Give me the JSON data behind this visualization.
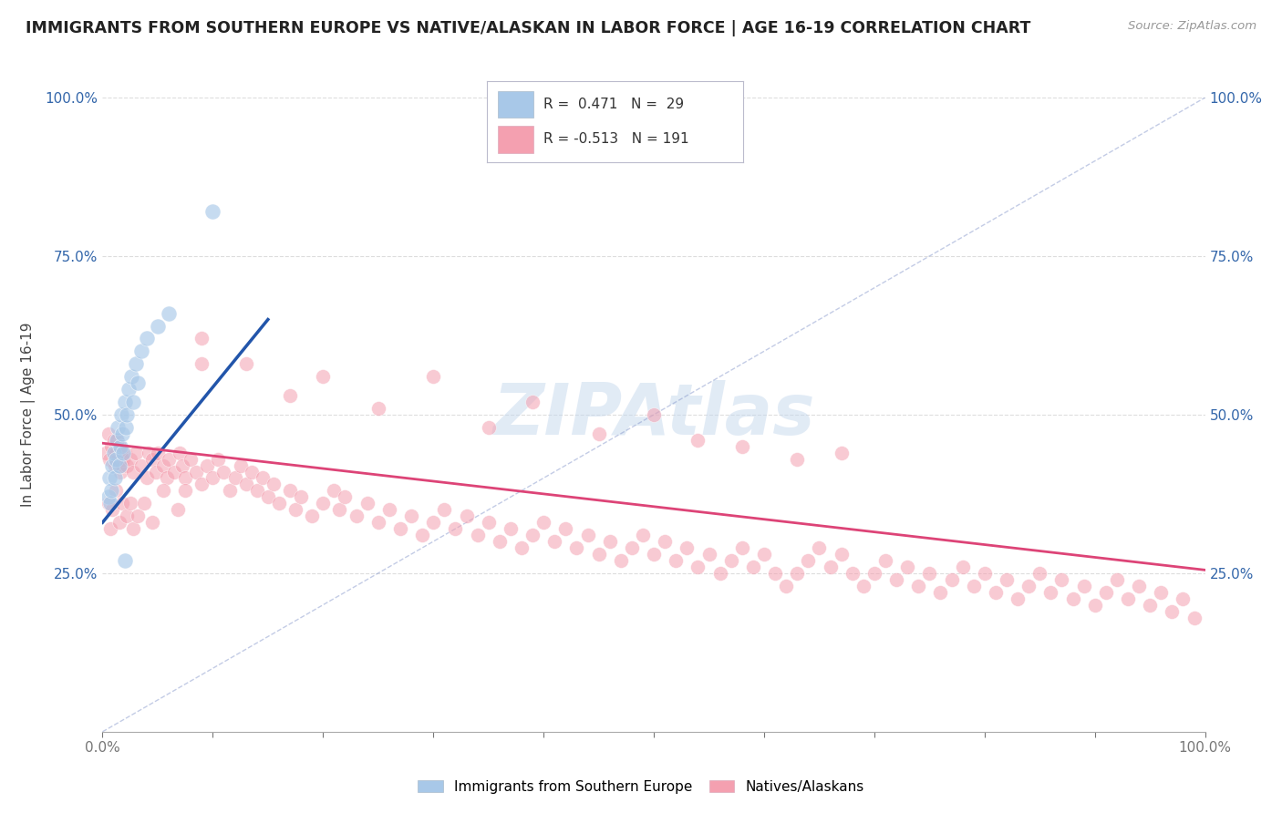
{
  "title": "IMMIGRANTS FROM SOUTHERN EUROPE VS NATIVE/ALASKAN IN LABOR FORCE | AGE 16-19 CORRELATION CHART",
  "source": "Source: ZipAtlas.com",
  "ylabel": "In Labor Force | Age 16-19",
  "blue_color": "#a8c8e8",
  "pink_color": "#f4a0b0",
  "blue_line_color": "#2255aa",
  "pink_line_color": "#dd4477",
  "legend_blue_color": "#a8c8e8",
  "legend_pink_color": "#f4a0b0",
  "background_color": "#ffffff",
  "grid_color": "#dddddd",
  "watermark_color": "#c5d8ed",
  "blue_scatter": [
    [
      0.005,
      0.37
    ],
    [
      0.006,
      0.4
    ],
    [
      0.007,
      0.36
    ],
    [
      0.008,
      0.38
    ],
    [
      0.009,
      0.42
    ],
    [
      0.01,
      0.44
    ],
    [
      0.011,
      0.4
    ],
    [
      0.012,
      0.43
    ],
    [
      0.013,
      0.46
    ],
    [
      0.014,
      0.48
    ],
    [
      0.015,
      0.42
    ],
    [
      0.016,
      0.45
    ],
    [
      0.017,
      0.5
    ],
    [
      0.018,
      0.47
    ],
    [
      0.019,
      0.44
    ],
    [
      0.02,
      0.52
    ],
    [
      0.021,
      0.48
    ],
    [
      0.022,
      0.5
    ],
    [
      0.024,
      0.54
    ],
    [
      0.026,
      0.56
    ],
    [
      0.028,
      0.52
    ],
    [
      0.03,
      0.58
    ],
    [
      0.032,
      0.55
    ],
    [
      0.035,
      0.6
    ],
    [
      0.04,
      0.62
    ],
    [
      0.05,
      0.64
    ],
    [
      0.06,
      0.66
    ],
    [
      0.1,
      0.82
    ],
    [
      0.02,
      0.27
    ]
  ],
  "pink_scatter": [
    [
      0.003,
      0.44
    ],
    [
      0.005,
      0.47
    ],
    [
      0.006,
      0.43
    ],
    [
      0.008,
      0.45
    ],
    [
      0.01,
      0.46
    ],
    [
      0.011,
      0.42
    ],
    [
      0.012,
      0.44
    ],
    [
      0.013,
      0.46
    ],
    [
      0.014,
      0.43
    ],
    [
      0.015,
      0.45
    ],
    [
      0.016,
      0.41
    ],
    [
      0.017,
      0.44
    ],
    [
      0.018,
      0.42
    ],
    [
      0.019,
      0.43
    ],
    [
      0.02,
      0.44
    ],
    [
      0.022,
      0.42
    ],
    [
      0.025,
      0.43
    ],
    [
      0.028,
      0.41
    ],
    [
      0.03,
      0.44
    ],
    [
      0.035,
      0.42
    ],
    [
      0.04,
      0.4
    ],
    [
      0.042,
      0.44
    ],
    [
      0.045,
      0.43
    ],
    [
      0.048,
      0.41
    ],
    [
      0.05,
      0.44
    ],
    [
      0.055,
      0.42
    ],
    [
      0.058,
      0.4
    ],
    [
      0.06,
      0.43
    ],
    [
      0.065,
      0.41
    ],
    [
      0.07,
      0.44
    ],
    [
      0.072,
      0.42
    ],
    [
      0.075,
      0.4
    ],
    [
      0.08,
      0.43
    ],
    [
      0.085,
      0.41
    ],
    [
      0.09,
      0.39
    ],
    [
      0.095,
      0.42
    ],
    [
      0.1,
      0.4
    ],
    [
      0.105,
      0.43
    ],
    [
      0.11,
      0.41
    ],
    [
      0.115,
      0.38
    ],
    [
      0.12,
      0.4
    ],
    [
      0.125,
      0.42
    ],
    [
      0.13,
      0.39
    ],
    [
      0.135,
      0.41
    ],
    [
      0.14,
      0.38
    ],
    [
      0.145,
      0.4
    ],
    [
      0.15,
      0.37
    ],
    [
      0.155,
      0.39
    ],
    [
      0.16,
      0.36
    ],
    [
      0.17,
      0.38
    ],
    [
      0.175,
      0.35
    ],
    [
      0.18,
      0.37
    ],
    [
      0.19,
      0.34
    ],
    [
      0.2,
      0.36
    ],
    [
      0.21,
      0.38
    ],
    [
      0.215,
      0.35
    ],
    [
      0.22,
      0.37
    ],
    [
      0.23,
      0.34
    ],
    [
      0.24,
      0.36
    ],
    [
      0.25,
      0.33
    ],
    [
      0.26,
      0.35
    ],
    [
      0.27,
      0.32
    ],
    [
      0.28,
      0.34
    ],
    [
      0.29,
      0.31
    ],
    [
      0.3,
      0.33
    ],
    [
      0.31,
      0.35
    ],
    [
      0.32,
      0.32
    ],
    [
      0.33,
      0.34
    ],
    [
      0.34,
      0.31
    ],
    [
      0.35,
      0.33
    ],
    [
      0.36,
      0.3
    ],
    [
      0.37,
      0.32
    ],
    [
      0.38,
      0.29
    ],
    [
      0.39,
      0.31
    ],
    [
      0.4,
      0.33
    ],
    [
      0.41,
      0.3
    ],
    [
      0.42,
      0.32
    ],
    [
      0.43,
      0.29
    ],
    [
      0.44,
      0.31
    ],
    [
      0.45,
      0.28
    ],
    [
      0.46,
      0.3
    ],
    [
      0.47,
      0.27
    ],
    [
      0.48,
      0.29
    ],
    [
      0.49,
      0.31
    ],
    [
      0.5,
      0.28
    ],
    [
      0.51,
      0.3
    ],
    [
      0.52,
      0.27
    ],
    [
      0.53,
      0.29
    ],
    [
      0.54,
      0.26
    ],
    [
      0.55,
      0.28
    ],
    [
      0.56,
      0.25
    ],
    [
      0.57,
      0.27
    ],
    [
      0.58,
      0.29
    ],
    [
      0.59,
      0.26
    ],
    [
      0.6,
      0.28
    ],
    [
      0.61,
      0.25
    ],
    [
      0.62,
      0.23
    ],
    [
      0.63,
      0.25
    ],
    [
      0.64,
      0.27
    ],
    [
      0.65,
      0.29
    ],
    [
      0.66,
      0.26
    ],
    [
      0.67,
      0.28
    ],
    [
      0.68,
      0.25
    ],
    [
      0.69,
      0.23
    ],
    [
      0.7,
      0.25
    ],
    [
      0.71,
      0.27
    ],
    [
      0.72,
      0.24
    ],
    [
      0.73,
      0.26
    ],
    [
      0.74,
      0.23
    ],
    [
      0.75,
      0.25
    ],
    [
      0.76,
      0.22
    ],
    [
      0.77,
      0.24
    ],
    [
      0.78,
      0.26
    ],
    [
      0.79,
      0.23
    ],
    [
      0.8,
      0.25
    ],
    [
      0.81,
      0.22
    ],
    [
      0.82,
      0.24
    ],
    [
      0.83,
      0.21
    ],
    [
      0.84,
      0.23
    ],
    [
      0.85,
      0.25
    ],
    [
      0.86,
      0.22
    ],
    [
      0.87,
      0.24
    ],
    [
      0.88,
      0.21
    ],
    [
      0.89,
      0.23
    ],
    [
      0.9,
      0.2
    ],
    [
      0.91,
      0.22
    ],
    [
      0.92,
      0.24
    ],
    [
      0.93,
      0.21
    ],
    [
      0.94,
      0.23
    ],
    [
      0.95,
      0.2
    ],
    [
      0.96,
      0.22
    ],
    [
      0.97,
      0.19
    ],
    [
      0.98,
      0.21
    ],
    [
      0.99,
      0.18
    ],
    [
      0.09,
      0.62
    ],
    [
      0.13,
      0.58
    ],
    [
      0.17,
      0.53
    ],
    [
      0.2,
      0.56
    ],
    [
      0.25,
      0.51
    ],
    [
      0.3,
      0.56
    ],
    [
      0.35,
      0.48
    ],
    [
      0.39,
      0.52
    ],
    [
      0.45,
      0.47
    ],
    [
      0.5,
      0.5
    ],
    [
      0.54,
      0.46
    ],
    [
      0.58,
      0.45
    ],
    [
      0.63,
      0.43
    ],
    [
      0.67,
      0.44
    ],
    [
      0.09,
      0.58
    ],
    [
      0.005,
      0.36
    ],
    [
      0.007,
      0.32
    ],
    [
      0.009,
      0.35
    ],
    [
      0.012,
      0.38
    ],
    [
      0.015,
      0.33
    ],
    [
      0.018,
      0.36
    ],
    [
      0.022,
      0.34
    ],
    [
      0.025,
      0.36
    ],
    [
      0.028,
      0.32
    ],
    [
      0.032,
      0.34
    ],
    [
      0.038,
      0.36
    ],
    [
      0.045,
      0.33
    ],
    [
      0.055,
      0.38
    ],
    [
      0.068,
      0.35
    ],
    [
      0.075,
      0.38
    ]
  ],
  "blue_line": [
    [
      0.0,
      0.33
    ],
    [
      0.15,
      0.65
    ]
  ],
  "pink_line": [
    [
      0.0,
      0.455
    ],
    [
      1.0,
      0.255
    ]
  ],
  "xlim": [
    0.0,
    1.0
  ],
  "ylim": [
    0.0,
    1.0
  ],
  "xtick_positions": [
    0.0,
    0.1,
    0.2,
    0.3,
    0.4,
    0.5,
    0.6,
    0.7,
    0.8,
    0.9,
    1.0
  ],
  "ytick_positions": [
    0.0,
    0.25,
    0.5,
    0.75,
    1.0
  ],
  "xtick_labels_show": {
    "0.0": "0.0%",
    "1.0": "100.0%"
  },
  "ytick_labels_left": {
    "0.25": "25.0%",
    "0.5": "50.0%",
    "0.75": "75.0%",
    "1.0": "100.0%"
  },
  "ytick_labels_right": {
    "0.25": "25.0%",
    "0.5": "50.0%",
    "0.75": "75.0%",
    "1.0": "100.0%"
  }
}
